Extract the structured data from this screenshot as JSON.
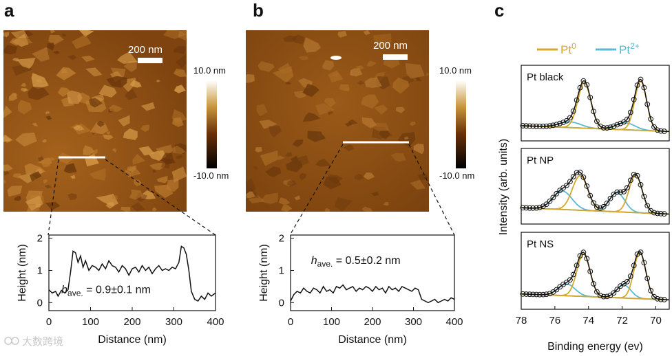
{
  "panels": {
    "a": "a",
    "b": "b",
    "c": "c"
  },
  "colors": {
    "pt0": "#d4a82c",
    "pt2": "#5ab8d2",
    "afm_dark": "#5a2d06",
    "afm_mid": "#8b4c12",
    "afm_light": "#c07a2a"
  },
  "afm": {
    "a": {
      "scale_bar_label": "200 nm",
      "colorbar_top": "10.0 nm",
      "colorbar_bottom": "-10.0 nm"
    },
    "b": {
      "scale_bar_label": "200 nm",
      "colorbar_top": "10.0 nm",
      "colorbar_bottom": "-10.0 nm"
    }
  },
  "watermark": "大数跨境",
  "chart_data": [
    {
      "id": "profile-a",
      "type": "line",
      "title": "",
      "xlabel": "Distance (nm)",
      "ylabel": "Height (nm)",
      "xlim": [
        0,
        400
      ],
      "ylim": [
        -0.25,
        2.1
      ],
      "xticks": [
        "0",
        "100",
        "200",
        "300",
        "400"
      ],
      "xtick_values": [
        0,
        100,
        200,
        300,
        400
      ],
      "yticks": [
        "0",
        "1",
        "2"
      ],
      "ytick_values": [
        0,
        1,
        2
      ],
      "annotation": {
        "h": "h",
        "sub": "ave.",
        "rest": " = 0.9±0.1 nm",
        "x": 30,
        "y": 0.3
      },
      "x": [
        0,
        8,
        16,
        22,
        30,
        38,
        46,
        52,
        58,
        64,
        70,
        76,
        82,
        88,
        96,
        104,
        112,
        120,
        128,
        136,
        144,
        152,
        160,
        168,
        176,
        184,
        192,
        200,
        208,
        216,
        224,
        232,
        240,
        248,
        256,
        264,
        272,
        280,
        288,
        296,
        304,
        312,
        318,
        324,
        330,
        336,
        342,
        350,
        358,
        366,
        374,
        382,
        390,
        400
      ],
      "y": [
        0.4,
        0.3,
        0.35,
        0.2,
        0.38,
        0.3,
        0.4,
        0.95,
        1.6,
        1.55,
        1.25,
        1.45,
        1.1,
        1.3,
        1.0,
        1.15,
        1.1,
        1.0,
        1.2,
        1.05,
        1.3,
        1.15,
        1.1,
        0.95,
        1.15,
        1.05,
        0.85,
        1.05,
        1.1,
        0.95,
        1.15,
        1.0,
        1.1,
        0.9,
        1.05,
        1.15,
        1.0,
        1.05,
        1.0,
        1.1,
        1.05,
        1.25,
        1.75,
        1.7,
        1.5,
        1.0,
        0.35,
        0.1,
        0.05,
        0.2,
        0.1,
        0.3,
        0.2,
        0.3
      ]
    },
    {
      "id": "profile-b",
      "type": "line",
      "title": "",
      "xlabel": "Distance (nm)",
      "ylabel": "Height (nm)",
      "xlim": [
        0,
        400
      ],
      "ylim": [
        -0.25,
        2.1
      ],
      "xticks": [
        "0",
        "100",
        "200",
        "300",
        "400"
      ],
      "xtick_values": [
        0,
        100,
        200,
        300,
        400
      ],
      "yticks": [
        "0",
        "1",
        "2"
      ],
      "ytick_values": [
        0,
        1,
        2
      ],
      "annotation": {
        "h": "h",
        "sub": "ave.",
        "rest": " = 0.5±0.2 nm",
        "x": 50,
        "y": 1.2
      },
      "x": [
        0,
        8,
        16,
        24,
        32,
        40,
        48,
        56,
        64,
        72,
        80,
        88,
        96,
        104,
        112,
        120,
        128,
        136,
        144,
        152,
        160,
        168,
        176,
        184,
        192,
        200,
        208,
        216,
        224,
        232,
        240,
        248,
        256,
        264,
        272,
        280,
        288,
        296,
        304,
        312,
        320,
        328,
        336,
        344,
        352,
        360,
        368,
        376,
        384,
        392,
        400
      ],
      "y": [
        0.05,
        0.25,
        0.35,
        0.3,
        0.45,
        0.35,
        0.3,
        0.45,
        0.4,
        0.3,
        0.5,
        0.35,
        0.4,
        0.3,
        0.5,
        0.45,
        0.55,
        0.4,
        0.45,
        0.5,
        0.35,
        0.45,
        0.4,
        0.5,
        0.45,
        0.35,
        0.5,
        0.4,
        0.45,
        0.3,
        0.5,
        0.4,
        0.45,
        0.35,
        0.5,
        0.45,
        0.4,
        0.35,
        0.45,
        0.4,
        0.1,
        0.05,
        0.0,
        0.05,
        0.1,
        0.0,
        0.05,
        0.1,
        0.05,
        0.15,
        0.1
      ]
    },
    {
      "id": "xps",
      "type": "line",
      "title": "",
      "xlabel": "Binding energy (ev)",
      "ylabel": "Intensity (arb. units)",
      "xlim": [
        78,
        69.2
      ],
      "xticks": [
        "78",
        "76",
        "74",
        "72",
        "70"
      ],
      "xtick_values": [
        78,
        76,
        74,
        72,
        70
      ],
      "legend": [
        {
          "label": "Pt",
          "sup": "0",
          "color_key": "pt0"
        },
        {
          "label": "Pt",
          "sup": "2+",
          "color_key": "pt2"
        }
      ],
      "subplots": [
        {
          "label": "Pt black",
          "background": [
            0.12,
            0.02
          ],
          "pt0_peaks": [
            {
              "center": 74.25,
              "height": 0.78,
              "width": 0.55
            },
            {
              "center": 70.9,
              "height": 0.85,
              "width": 0.5
            }
          ],
          "pt2_peaks": [
            {
              "center": 75.1,
              "height": 0.1,
              "width": 0.9
            },
            {
              "center": 71.8,
              "height": 0.12,
              "width": 0.8
            }
          ]
        },
        {
          "label": "Pt NP",
          "background": [
            0.14,
            0.03
          ],
          "pt0_peaks": [
            {
              "center": 74.5,
              "height": 0.6,
              "width": 0.65
            },
            {
              "center": 71.2,
              "height": 0.65,
              "width": 0.55
            }
          ],
          "pt2_peaks": [
            {
              "center": 75.55,
              "height": 0.32,
              "width": 0.8
            },
            {
              "center": 72.3,
              "height": 0.33,
              "width": 0.65
            }
          ]
        },
        {
          "label": "Pt NS",
          "background": [
            0.12,
            0.02
          ],
          "pt0_peaks": [
            {
              "center": 74.3,
              "height": 0.72,
              "width": 0.55
            },
            {
              "center": 70.95,
              "height": 0.78,
              "width": 0.5
            }
          ],
          "pt2_peaks": [
            {
              "center": 75.3,
              "height": 0.2,
              "width": 0.7
            },
            {
              "center": 71.9,
              "height": 0.22,
              "width": 0.6
            }
          ]
        }
      ]
    }
  ]
}
